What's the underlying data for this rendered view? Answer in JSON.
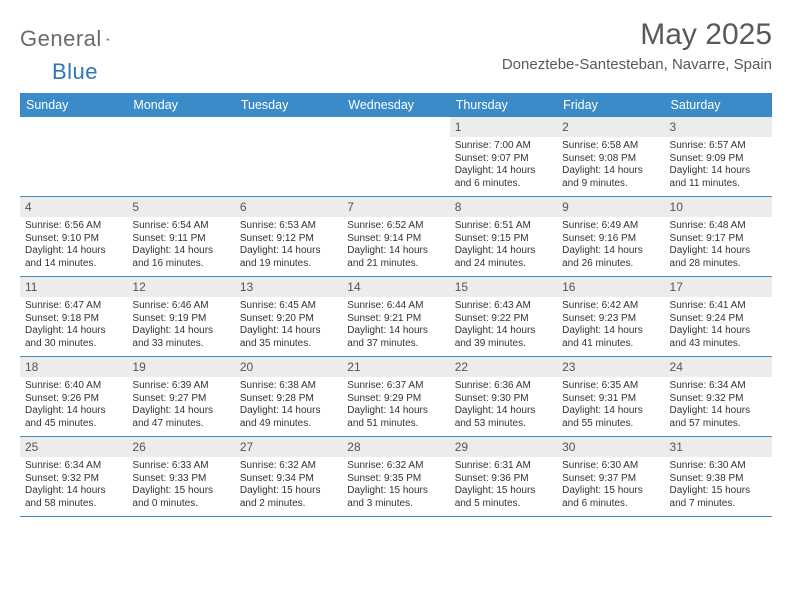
{
  "logo": {
    "text1": "General",
    "text2": "Blue"
  },
  "title": "May 2025",
  "location": "Doneztebe-Santesteban, Navarre, Spain",
  "colors": {
    "header_bg": "#3b8bc8",
    "header_text": "#ffffff",
    "daynum_bg": "#ececec",
    "row_divider": "#3b8bc8",
    "title_color": "#595959",
    "logo_gray": "#6b6b6b",
    "logo_blue": "#2e77b8",
    "body_text": "#333333",
    "page_bg": "#ffffff"
  },
  "typography": {
    "month_title_pt": 30,
    "location_pt": 15,
    "weekday_pt": 12.5,
    "daynum_pt": 12,
    "cell_pt": 10,
    "font_family": "Arial"
  },
  "weekdays": [
    "Sunday",
    "Monday",
    "Tuesday",
    "Wednesday",
    "Thursday",
    "Friday",
    "Saturday"
  ],
  "weeks": [
    [
      {
        "n": "",
        "sr": "",
        "ss": "",
        "dl": ""
      },
      {
        "n": "",
        "sr": "",
        "ss": "",
        "dl": ""
      },
      {
        "n": "",
        "sr": "",
        "ss": "",
        "dl": ""
      },
      {
        "n": "",
        "sr": "",
        "ss": "",
        "dl": ""
      },
      {
        "n": "1",
        "sr": "7:00 AM",
        "ss": "9:07 PM",
        "dl": "14 hours and 6 minutes."
      },
      {
        "n": "2",
        "sr": "6:58 AM",
        "ss": "9:08 PM",
        "dl": "14 hours and 9 minutes."
      },
      {
        "n": "3",
        "sr": "6:57 AM",
        "ss": "9:09 PM",
        "dl": "14 hours and 11 minutes."
      }
    ],
    [
      {
        "n": "4",
        "sr": "6:56 AM",
        "ss": "9:10 PM",
        "dl": "14 hours and 14 minutes."
      },
      {
        "n": "5",
        "sr": "6:54 AM",
        "ss": "9:11 PM",
        "dl": "14 hours and 16 minutes."
      },
      {
        "n": "6",
        "sr": "6:53 AM",
        "ss": "9:12 PM",
        "dl": "14 hours and 19 minutes."
      },
      {
        "n": "7",
        "sr": "6:52 AM",
        "ss": "9:14 PM",
        "dl": "14 hours and 21 minutes."
      },
      {
        "n": "8",
        "sr": "6:51 AM",
        "ss": "9:15 PM",
        "dl": "14 hours and 24 minutes."
      },
      {
        "n": "9",
        "sr": "6:49 AM",
        "ss": "9:16 PM",
        "dl": "14 hours and 26 minutes."
      },
      {
        "n": "10",
        "sr": "6:48 AM",
        "ss": "9:17 PM",
        "dl": "14 hours and 28 minutes."
      }
    ],
    [
      {
        "n": "11",
        "sr": "6:47 AM",
        "ss": "9:18 PM",
        "dl": "14 hours and 30 minutes."
      },
      {
        "n": "12",
        "sr": "6:46 AM",
        "ss": "9:19 PM",
        "dl": "14 hours and 33 minutes."
      },
      {
        "n": "13",
        "sr": "6:45 AM",
        "ss": "9:20 PM",
        "dl": "14 hours and 35 minutes."
      },
      {
        "n": "14",
        "sr": "6:44 AM",
        "ss": "9:21 PM",
        "dl": "14 hours and 37 minutes."
      },
      {
        "n": "15",
        "sr": "6:43 AM",
        "ss": "9:22 PM",
        "dl": "14 hours and 39 minutes."
      },
      {
        "n": "16",
        "sr": "6:42 AM",
        "ss": "9:23 PM",
        "dl": "14 hours and 41 minutes."
      },
      {
        "n": "17",
        "sr": "6:41 AM",
        "ss": "9:24 PM",
        "dl": "14 hours and 43 minutes."
      }
    ],
    [
      {
        "n": "18",
        "sr": "6:40 AM",
        "ss": "9:26 PM",
        "dl": "14 hours and 45 minutes."
      },
      {
        "n": "19",
        "sr": "6:39 AM",
        "ss": "9:27 PM",
        "dl": "14 hours and 47 minutes."
      },
      {
        "n": "20",
        "sr": "6:38 AM",
        "ss": "9:28 PM",
        "dl": "14 hours and 49 minutes."
      },
      {
        "n": "21",
        "sr": "6:37 AM",
        "ss": "9:29 PM",
        "dl": "14 hours and 51 minutes."
      },
      {
        "n": "22",
        "sr": "6:36 AM",
        "ss": "9:30 PM",
        "dl": "14 hours and 53 minutes."
      },
      {
        "n": "23",
        "sr": "6:35 AM",
        "ss": "9:31 PM",
        "dl": "14 hours and 55 minutes."
      },
      {
        "n": "24",
        "sr": "6:34 AM",
        "ss": "9:32 PM",
        "dl": "14 hours and 57 minutes."
      }
    ],
    [
      {
        "n": "25",
        "sr": "6:34 AM",
        "ss": "9:32 PM",
        "dl": "14 hours and 58 minutes."
      },
      {
        "n": "26",
        "sr": "6:33 AM",
        "ss": "9:33 PM",
        "dl": "15 hours and 0 minutes."
      },
      {
        "n": "27",
        "sr": "6:32 AM",
        "ss": "9:34 PM",
        "dl": "15 hours and 2 minutes."
      },
      {
        "n": "28",
        "sr": "6:32 AM",
        "ss": "9:35 PM",
        "dl": "15 hours and 3 minutes."
      },
      {
        "n": "29",
        "sr": "6:31 AM",
        "ss": "9:36 PM",
        "dl": "15 hours and 5 minutes."
      },
      {
        "n": "30",
        "sr": "6:30 AM",
        "ss": "9:37 PM",
        "dl": "15 hours and 6 minutes."
      },
      {
        "n": "31",
        "sr": "6:30 AM",
        "ss": "9:38 PM",
        "dl": "15 hours and 7 minutes."
      }
    ]
  ],
  "labels": {
    "sunrise": "Sunrise: ",
    "sunset": "Sunset: ",
    "daylight": "Daylight: "
  }
}
